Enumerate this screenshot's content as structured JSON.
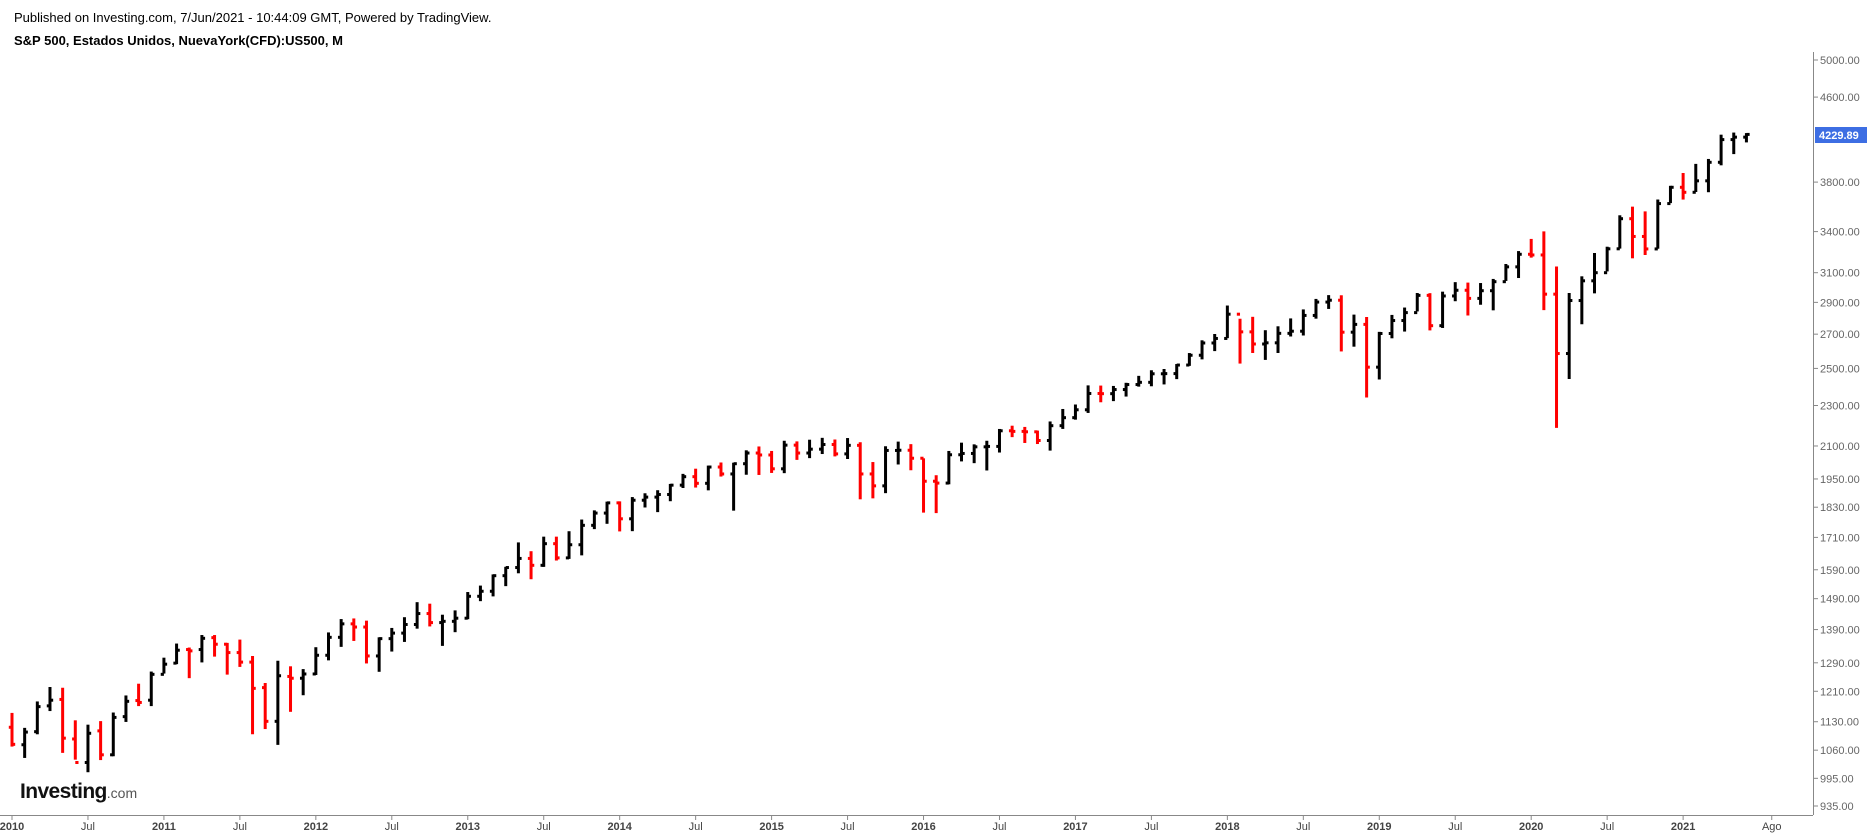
{
  "header": {
    "published": "Published on Investing.com, 7/Jun/2021 - 10:44:09 GMT, Powered by TradingView.",
    "symbol": "S&P 500, Estados Unidos, NuevaYork(CFD):US500, M"
  },
  "logo": {
    "brand": "Investing",
    "suffix": ".com"
  },
  "colors": {
    "up": "#000000",
    "down": "#ff0000",
    "last_price_bg": "#3d6ee3",
    "axis": "#666666"
  },
  "chart_data": {
    "type": "ohlc",
    "interval": "monthly",
    "scale": "log",
    "ylim": [
      935,
      5000
    ],
    "y_ticks": [
      "935.00",
      "995.00",
      "1060.00",
      "1130.00",
      "1210.00",
      "1290.00",
      "1390.00",
      "1490.00",
      "1590.00",
      "1710.00",
      "1830.00",
      "1950.00",
      "2100.00",
      "2300.00",
      "2500.00",
      "2700.00",
      "2900.00",
      "3100.00",
      "3400.00",
      "3800.00",
      "4600.00",
      "5000.00"
    ],
    "x_ticks": [
      {
        "label": "2010",
        "i": 0
      },
      {
        "label": "Jul",
        "i": 6
      },
      {
        "label": "2011",
        "i": 12
      },
      {
        "label": "Jul",
        "i": 18
      },
      {
        "label": "2012",
        "i": 24
      },
      {
        "label": "Jul",
        "i": 30
      },
      {
        "label": "2013",
        "i": 36
      },
      {
        "label": "Jul",
        "i": 42
      },
      {
        "label": "2014",
        "i": 48
      },
      {
        "label": "Jul",
        "i": 54
      },
      {
        "label": "2015",
        "i": 60
      },
      {
        "label": "Jul",
        "i": 66
      },
      {
        "label": "2016",
        "i": 72
      },
      {
        "label": "Jul",
        "i": 78
      },
      {
        "label": "2017",
        "i": 84
      },
      {
        "label": "Jul",
        "i": 90
      },
      {
        "label": "2018",
        "i": 96
      },
      {
        "label": "Jul",
        "i": 102
      },
      {
        "label": "2019",
        "i": 108
      },
      {
        "label": "Jul",
        "i": 114
      },
      {
        "label": "2020",
        "i": 120
      },
      {
        "label": "Jul",
        "i": 126
      },
      {
        "label": "2021",
        "i": 132
      },
      {
        "label": "Ago",
        "i": 139
      }
    ],
    "last_price": "4229.89",
    "series": [
      {
        "o": 1116,
        "h": 1150,
        "l": 1071,
        "c": 1074
      },
      {
        "o": 1073,
        "h": 1112,
        "l": 1044,
        "c": 1104
      },
      {
        "o": 1105,
        "h": 1180,
        "l": 1101,
        "c": 1169
      },
      {
        "o": 1171,
        "h": 1219,
        "l": 1160,
        "c": 1186
      },
      {
        "o": 1188,
        "h": 1217,
        "l": 1056,
        "c": 1089
      },
      {
        "o": 1087,
        "h": 1131,
        "l": 1040,
        "c": 1031
      },
      {
        "o": 1031,
        "h": 1120,
        "l": 1011,
        "c": 1101
      },
      {
        "o": 1107,
        "h": 1129,
        "l": 1039,
        "c": 1049
      },
      {
        "o": 1049,
        "h": 1151,
        "l": 1048,
        "c": 1141
      },
      {
        "o": 1143,
        "h": 1196,
        "l": 1132,
        "c": 1183
      },
      {
        "o": 1185,
        "h": 1228,
        "l": 1173,
        "c": 1180
      },
      {
        "o": 1186,
        "h": 1262,
        "l": 1173,
        "c": 1257
      },
      {
        "o": 1257,
        "h": 1302,
        "l": 1262,
        "c": 1286
      },
      {
        "o": 1289,
        "h": 1344,
        "l": 1289,
        "c": 1327
      },
      {
        "o": 1329,
        "h": 1332,
        "l": 1249,
        "c": 1325
      },
      {
        "o": 1329,
        "h": 1370,
        "l": 1294,
        "c": 1363
      },
      {
        "o": 1365,
        "h": 1370,
        "l": 1311,
        "c": 1345
      },
      {
        "o": 1345,
        "h": 1346,
        "l": 1259,
        "c": 1320
      },
      {
        "o": 1320,
        "h": 1356,
        "l": 1281,
        "c": 1292
      },
      {
        "o": 1292,
        "h": 1307,
        "l": 1101,
        "c": 1218
      },
      {
        "o": 1220,
        "h": 1230,
        "l": 1114,
        "c": 1131
      },
      {
        "o": 1131,
        "h": 1293,
        "l": 1075,
        "c": 1253
      },
      {
        "o": 1251,
        "h": 1277,
        "l": 1158,
        "c": 1246
      },
      {
        "o": 1246,
        "h": 1269,
        "l": 1202,
        "c": 1258
      },
      {
        "o": 1258,
        "h": 1333,
        "l": 1258,
        "c": 1312
      },
      {
        "o": 1312,
        "h": 1378,
        "l": 1300,
        "c": 1366
      },
      {
        "o": 1366,
        "h": 1420,
        "l": 1340,
        "c": 1408
      },
      {
        "o": 1408,
        "h": 1422,
        "l": 1358,
        "c": 1398
      },
      {
        "o": 1398,
        "h": 1415,
        "l": 1291,
        "c": 1310
      },
      {
        "o": 1310,
        "h": 1363,
        "l": 1267,
        "c": 1362
      },
      {
        "o": 1362,
        "h": 1392,
        "l": 1326,
        "c": 1379
      },
      {
        "o": 1379,
        "h": 1426,
        "l": 1355,
        "c": 1406
      },
      {
        "o": 1406,
        "h": 1475,
        "l": 1396,
        "c": 1441
      },
      {
        "o": 1441,
        "h": 1470,
        "l": 1403,
        "c": 1412
      },
      {
        "o": 1412,
        "h": 1434,
        "l": 1343,
        "c": 1416
      },
      {
        "o": 1416,
        "h": 1448,
        "l": 1385,
        "c": 1426
      },
      {
        "o": 1426,
        "h": 1509,
        "l": 1426,
        "c": 1498
      },
      {
        "o": 1498,
        "h": 1531,
        "l": 1485,
        "c": 1515
      },
      {
        "o": 1515,
        "h": 1570,
        "l": 1501,
        "c": 1569
      },
      {
        "o": 1569,
        "h": 1597,
        "l": 1536,
        "c": 1598
      },
      {
        "o": 1598,
        "h": 1687,
        "l": 1581,
        "c": 1631
      },
      {
        "o": 1631,
        "h": 1654,
        "l": 1560,
        "c": 1606
      },
      {
        "o": 1606,
        "h": 1709,
        "l": 1604,
        "c": 1686
      },
      {
        "o": 1686,
        "h": 1709,
        "l": 1627,
        "c": 1633
      },
      {
        "o": 1633,
        "h": 1730,
        "l": 1633,
        "c": 1682
      },
      {
        "o": 1682,
        "h": 1776,
        "l": 1646,
        "c": 1757
      },
      {
        "o": 1757,
        "h": 1813,
        "l": 1746,
        "c": 1806
      },
      {
        "o": 1806,
        "h": 1849,
        "l": 1767,
        "c": 1848
      },
      {
        "o": 1848,
        "h": 1850,
        "l": 1737,
        "c": 1783
      },
      {
        "o": 1783,
        "h": 1868,
        "l": 1738,
        "c": 1859
      },
      {
        "o": 1859,
        "h": 1884,
        "l": 1833,
        "c": 1872
      },
      {
        "o": 1872,
        "h": 1897,
        "l": 1814,
        "c": 1883
      },
      {
        "o": 1883,
        "h": 1924,
        "l": 1859,
        "c": 1923
      },
      {
        "o": 1923,
        "h": 1968,
        "l": 1915,
        "c": 1960
      },
      {
        "o": 1960,
        "h": 1991,
        "l": 1917,
        "c": 1931
      },
      {
        "o": 1931,
        "h": 2005,
        "l": 1905,
        "c": 2003
      },
      {
        "o": 2003,
        "h": 2019,
        "l": 1965,
        "c": 1972
      },
      {
        "o": 1972,
        "h": 2018,
        "l": 1820,
        "c": 2018
      },
      {
        "o": 2018,
        "h": 2075,
        "l": 1973,
        "c": 2067
      },
      {
        "o": 2067,
        "h": 2093,
        "l": 1972,
        "c": 2058
      },
      {
        "o": 2058,
        "h": 2072,
        "l": 1981,
        "c": 1995
      },
      {
        "o": 1995,
        "h": 2120,
        "l": 1980,
        "c": 2104
      },
      {
        "o": 2104,
        "h": 2117,
        "l": 2040,
        "c": 2067
      },
      {
        "o": 2067,
        "h": 2125,
        "l": 2048,
        "c": 2085
      },
      {
        "o": 2085,
        "h": 2134,
        "l": 2067,
        "c": 2107
      },
      {
        "o": 2107,
        "h": 2126,
        "l": 2056,
        "c": 2063
      },
      {
        "o": 2063,
        "h": 2133,
        "l": 2044,
        "c": 2103
      },
      {
        "o": 2103,
        "h": 2113,
        "l": 1867,
        "c": 1972
      },
      {
        "o": 1972,
        "h": 2021,
        "l": 1871,
        "c": 1920
      },
      {
        "o": 1920,
        "h": 2094,
        "l": 1893,
        "c": 2079
      },
      {
        "o": 2079,
        "h": 2116,
        "l": 2019,
        "c": 2080
      },
      {
        "o": 2080,
        "h": 2104,
        "l": 1993,
        "c": 2043
      },
      {
        "o": 2043,
        "h": 2038,
        "l": 1812,
        "c": 1940
      },
      {
        "o": 1940,
        "h": 1962,
        "l": 1810,
        "c": 1932
      },
      {
        "o": 1932,
        "h": 2072,
        "l": 1931,
        "c": 2059
      },
      {
        "o": 2059,
        "h": 2111,
        "l": 2033,
        "c": 2065
      },
      {
        "o": 2065,
        "h": 2103,
        "l": 2025,
        "c": 2096
      },
      {
        "o": 2096,
        "h": 2120,
        "l": 1992,
        "c": 2098
      },
      {
        "o": 2098,
        "h": 2177,
        "l": 2074,
        "c": 2173
      },
      {
        "o": 2173,
        "h": 2193,
        "l": 2147,
        "c": 2170
      },
      {
        "o": 2170,
        "h": 2187,
        "l": 2119,
        "c": 2168
      },
      {
        "o": 2168,
        "h": 2169,
        "l": 2114,
        "c": 2126
      },
      {
        "o": 2126,
        "h": 2214,
        "l": 2083,
        "c": 2198
      },
      {
        "o": 2198,
        "h": 2277,
        "l": 2187,
        "c": 2238
      },
      {
        "o": 2238,
        "h": 2300,
        "l": 2233,
        "c": 2278
      },
      {
        "o": 2278,
        "h": 2401,
        "l": 2267,
        "c": 2363
      },
      {
        "o": 2363,
        "h": 2400,
        "l": 2322,
        "c": 2362
      },
      {
        "o": 2362,
        "h": 2398,
        "l": 2328,
        "c": 2384
      },
      {
        "o": 2384,
        "h": 2415,
        "l": 2352,
        "c": 2411
      },
      {
        "o": 2411,
        "h": 2453,
        "l": 2405,
        "c": 2423
      },
      {
        "o": 2423,
        "h": 2484,
        "l": 2407,
        "c": 2470
      },
      {
        "o": 2470,
        "h": 2491,
        "l": 2417,
        "c": 2471
      },
      {
        "o": 2471,
        "h": 2519,
        "l": 2446,
        "c": 2519
      },
      {
        "o": 2519,
        "h": 2582,
        "l": 2520,
        "c": 2575
      },
      {
        "o": 2575,
        "h": 2657,
        "l": 2557,
        "c": 2647
      },
      {
        "o": 2647,
        "h": 2695,
        "l": 2605,
        "c": 2674
      },
      {
        "o": 2674,
        "h": 2873,
        "l": 2682,
        "c": 2824
      },
      {
        "o": 2824,
        "h": 2789,
        "l": 2533,
        "c": 2714
      },
      {
        "o": 2714,
        "h": 2801,
        "l": 2594,
        "c": 2641
      },
      {
        "o": 2641,
        "h": 2718,
        "l": 2554,
        "c": 2648
      },
      {
        "o": 2648,
        "h": 2742,
        "l": 2594,
        "c": 2705
      },
      {
        "o": 2705,
        "h": 2791,
        "l": 2692,
        "c": 2718
      },
      {
        "o": 2718,
        "h": 2848,
        "l": 2698,
        "c": 2816
      },
      {
        "o": 2816,
        "h": 2916,
        "l": 2802,
        "c": 2902
      },
      {
        "o": 2902,
        "h": 2941,
        "l": 2864,
        "c": 2914
      },
      {
        "o": 2914,
        "h": 2940,
        "l": 2603,
        "c": 2712
      },
      {
        "o": 2712,
        "h": 2815,
        "l": 2631,
        "c": 2760
      },
      {
        "o": 2760,
        "h": 2800,
        "l": 2347,
        "c": 2507
      },
      {
        "o": 2507,
        "h": 2708,
        "l": 2444,
        "c": 2704
      },
      {
        "o": 2704,
        "h": 2813,
        "l": 2681,
        "c": 2784
      },
      {
        "o": 2784,
        "h": 2860,
        "l": 2722,
        "c": 2834
      },
      {
        "o": 2834,
        "h": 2955,
        "l": 2848,
        "c": 2946
      },
      {
        "o": 2946,
        "h": 2954,
        "l": 2729,
        "c": 2752
      },
      {
        "o": 2752,
        "h": 2964,
        "l": 2744,
        "c": 2942
      },
      {
        "o": 2942,
        "h": 3028,
        "l": 2914,
        "c": 2980
      },
      {
        "o": 2980,
        "h": 3025,
        "l": 2822,
        "c": 2926
      },
      {
        "o": 2926,
        "h": 3022,
        "l": 2891,
        "c": 2977
      },
      {
        "o": 2977,
        "h": 3050,
        "l": 2855,
        "c": 3038
      },
      {
        "o": 3038,
        "h": 3154,
        "l": 3050,
        "c": 3141
      },
      {
        "o": 3141,
        "h": 3247,
        "l": 3070,
        "c": 3231
      },
      {
        "o": 3231,
        "h": 3337,
        "l": 3214,
        "c": 3226
      },
      {
        "o": 3226,
        "h": 3394,
        "l": 2856,
        "c": 2954
      },
      {
        "o": 2954,
        "h": 3136,
        "l": 2192,
        "c": 2585
      },
      {
        "o": 2585,
        "h": 2955,
        "l": 2447,
        "c": 2912
      },
      {
        "o": 2912,
        "h": 3068,
        "l": 2767,
        "c": 3044
      },
      {
        "o": 3044,
        "h": 3233,
        "l": 2966,
        "c": 3100
      },
      {
        "o": 3100,
        "h": 3279,
        "l": 3116,
        "c": 3271
      },
      {
        "o": 3271,
        "h": 3519,
        "l": 3280,
        "c": 3500
      },
      {
        "o": 3500,
        "h": 3588,
        "l": 3209,
        "c": 3363
      },
      {
        "o": 3363,
        "h": 3550,
        "l": 3233,
        "c": 3270
      },
      {
        "o": 3270,
        "h": 3646,
        "l": 3279,
        "c": 3621
      },
      {
        "o": 3621,
        "h": 3760,
        "l": 3633,
        "c": 3756
      },
      {
        "o": 3756,
        "h": 3870,
        "l": 3662,
        "c": 3714
      },
      {
        "o": 3714,
        "h": 3950,
        "l": 3725,
        "c": 3811
      },
      {
        "o": 3811,
        "h": 3994,
        "l": 3723,
        "c": 3973
      },
      {
        "o": 3973,
        "h": 4218,
        "l": 3955,
        "c": 4181
      },
      {
        "o": 4181,
        "h": 4238,
        "l": 4056,
        "c": 4204
      },
      {
        "o": 4204,
        "h": 4233,
        "l": 4164,
        "c": 4230
      }
    ]
  }
}
